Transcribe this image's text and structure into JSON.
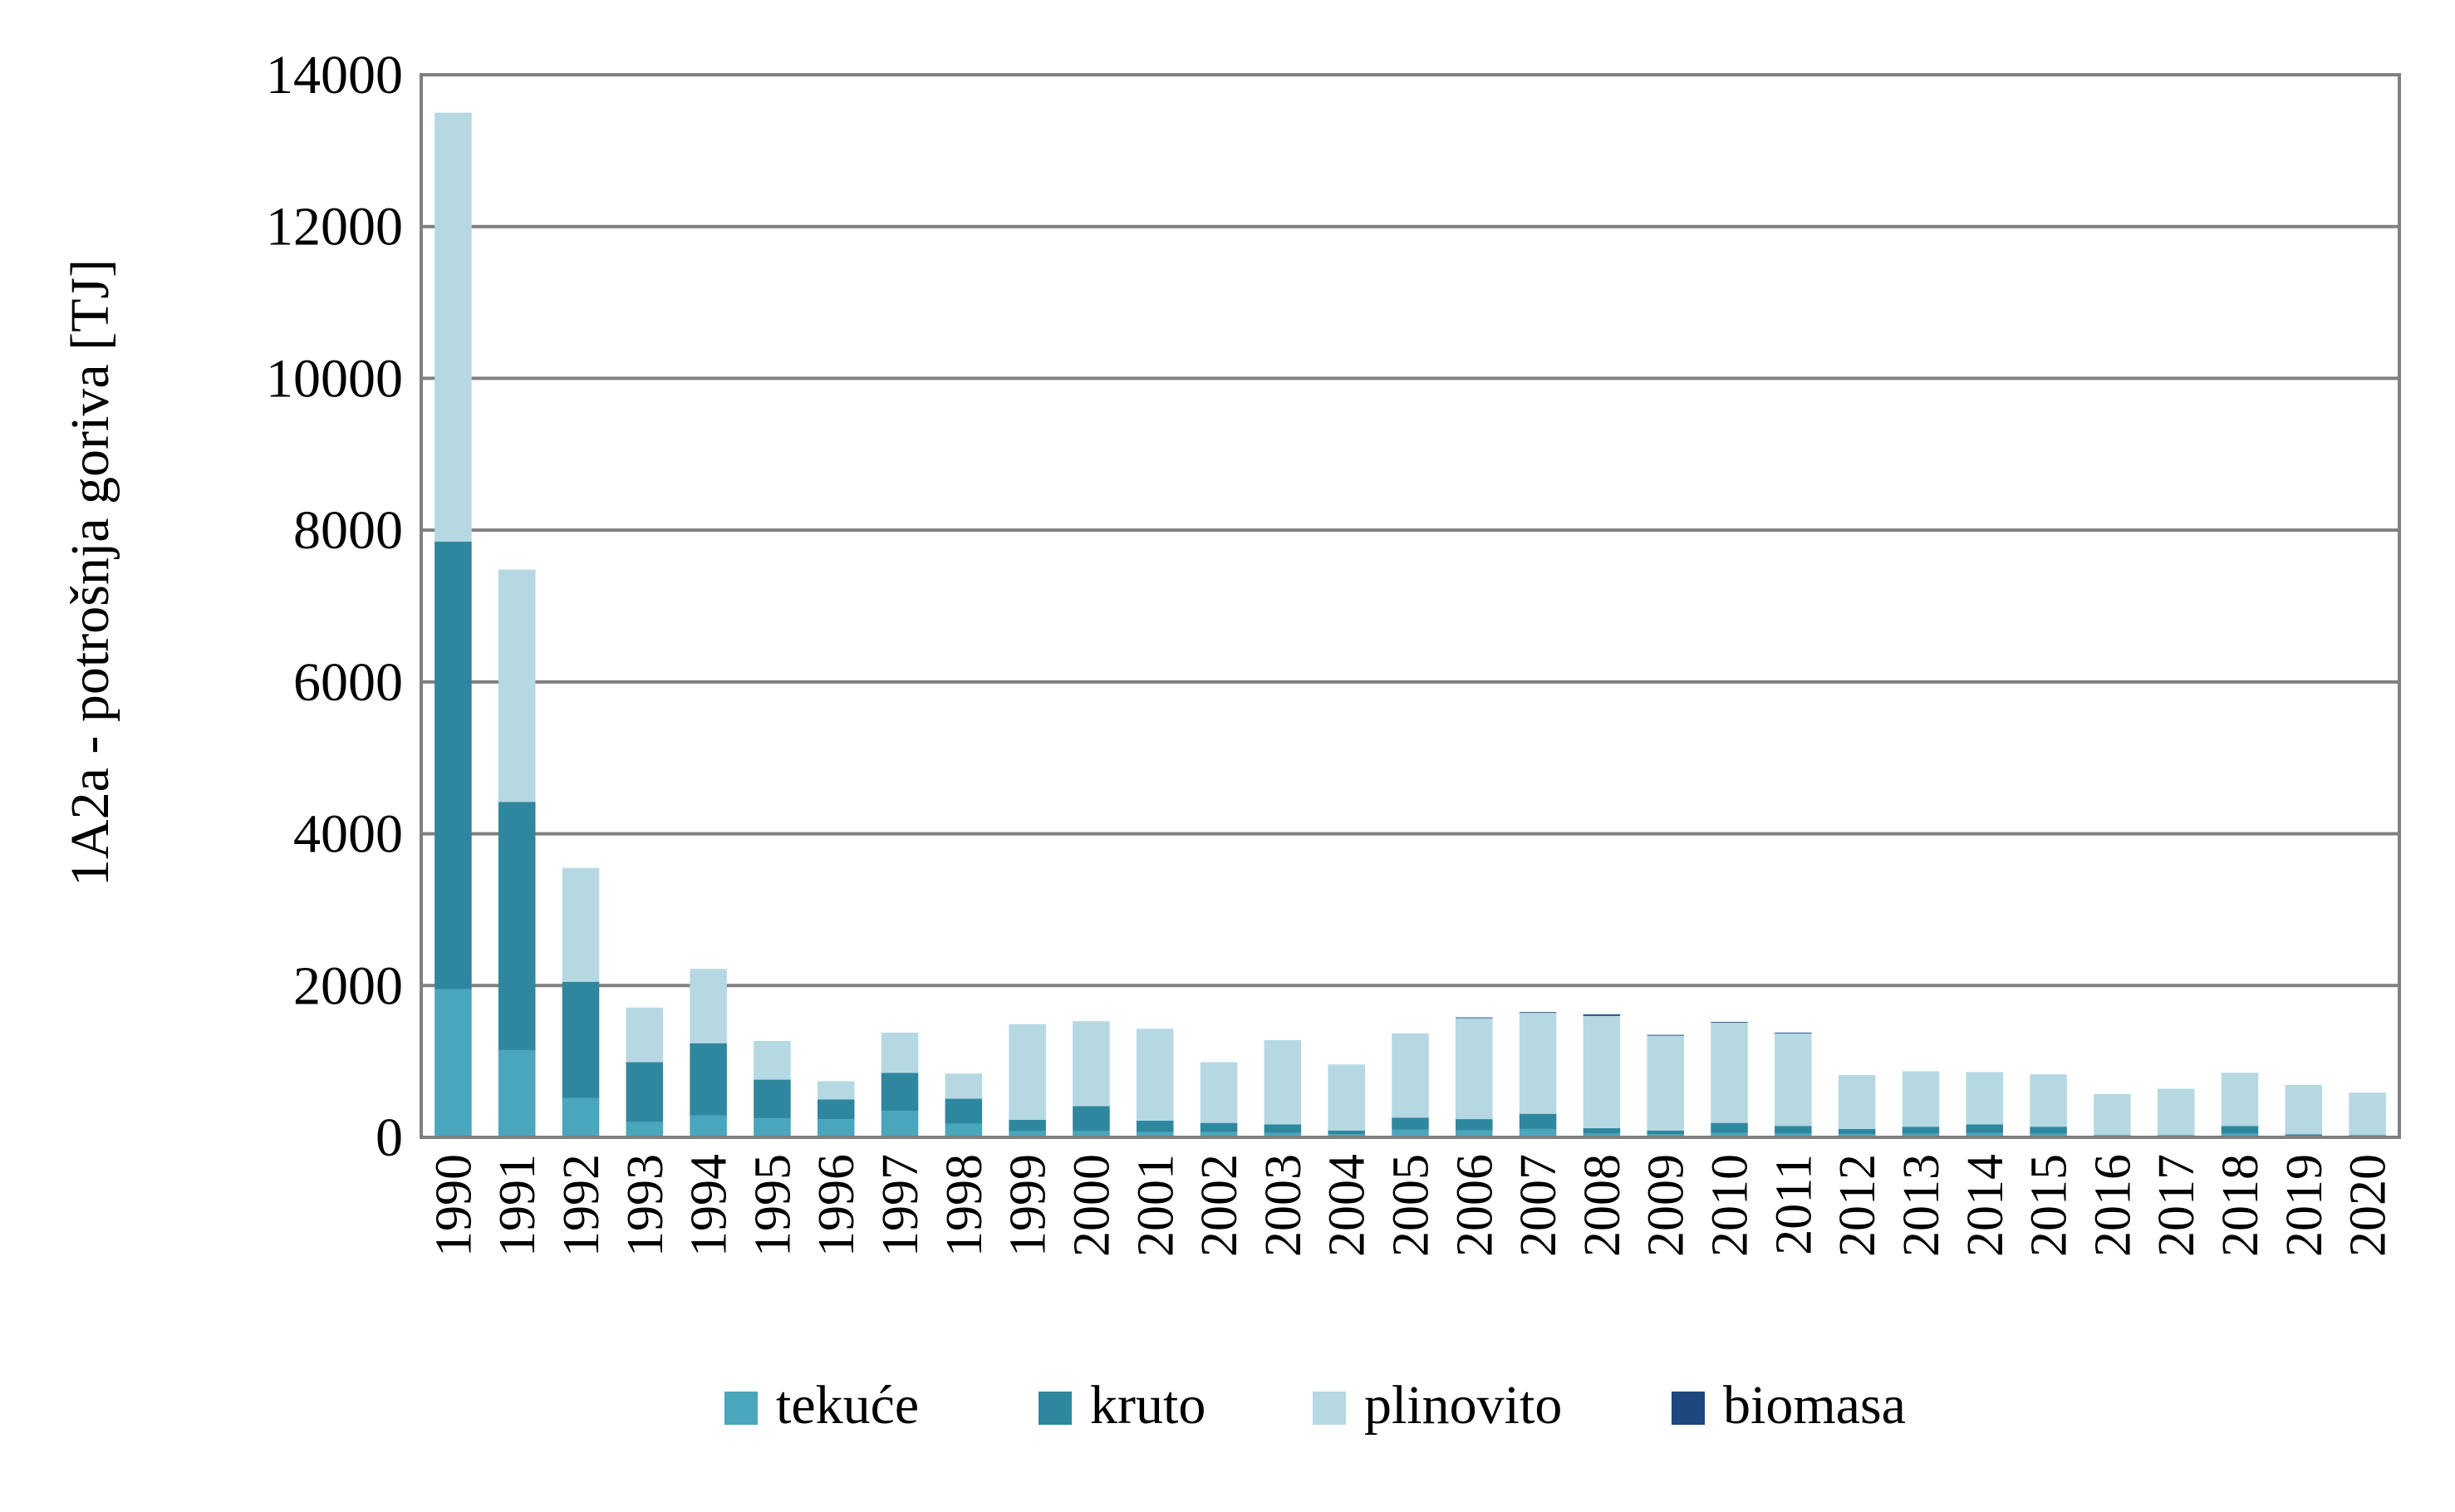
{
  "chart_data": {
    "type": "bar",
    "stacked": true,
    "ylabel": "1A2a  - potrošnja goriva [TJ]",
    "xlabel": "",
    "title": "",
    "ylim": [
      0,
      14000
    ],
    "yticks": [
      0,
      2000,
      4000,
      6000,
      8000,
      10000,
      12000,
      14000
    ],
    "grid": true,
    "legend_position": "bottom",
    "categories": [
      "1990",
      "1991",
      "1992",
      "1993",
      "1994",
      "1995",
      "1996",
      "1997",
      "1998",
      "1999",
      "2000",
      "2001",
      "2002",
      "2003",
      "2004",
      "2005",
      "2006",
      "2007",
      "2008",
      "2009",
      "2010",
      "2011",
      "2012",
      "2013",
      "2014",
      "2015",
      "2016",
      "2017",
      "2018",
      "2019",
      "2020"
    ],
    "series": [
      {
        "name": "tekuće",
        "color": "#4aa6bd",
        "values": [
          1950,
          1150,
          520,
          200,
          290,
          250,
          240,
          350,
          180,
          80,
          80,
          70,
          70,
          60,
          40,
          100,
          90,
          110,
          50,
          40,
          60,
          50,
          40,
          50,
          60,
          50,
          20,
          20,
          50,
          20,
          20
        ]
      },
      {
        "name": "kruto",
        "color": "#2f879f",
        "values": [
          5900,
          3270,
          1530,
          790,
          950,
          510,
          260,
          500,
          330,
          150,
          330,
          150,
          120,
          110,
          50,
          160,
          150,
          200,
          70,
          50,
          130,
          100,
          70,
          90,
          110,
          90,
          10,
          10,
          100,
          20,
          10
        ]
      },
      {
        "name": "plinovito",
        "color": "#b6d8e2",
        "values": [
          5650,
          3060,
          1500,
          720,
          980,
          510,
          240,
          530,
          330,
          1260,
          1120,
          1210,
          800,
          1110,
          870,
          1110,
          1330,
          1330,
          1480,
          1250,
          1320,
          1220,
          710,
          730,
          690,
          690,
          540,
          610,
          700,
          650,
          560
        ]
      },
      {
        "name": "biomasa",
        "color": "#1f477f",
        "values": [
          0,
          0,
          0,
          0,
          0,
          0,
          0,
          0,
          0,
          0,
          0,
          0,
          0,
          0,
          0,
          0,
          10,
          10,
          20,
          10,
          10,
          10,
          0,
          0,
          0,
          0,
          0,
          0,
          0,
          0,
          0
        ]
      }
    ]
  }
}
